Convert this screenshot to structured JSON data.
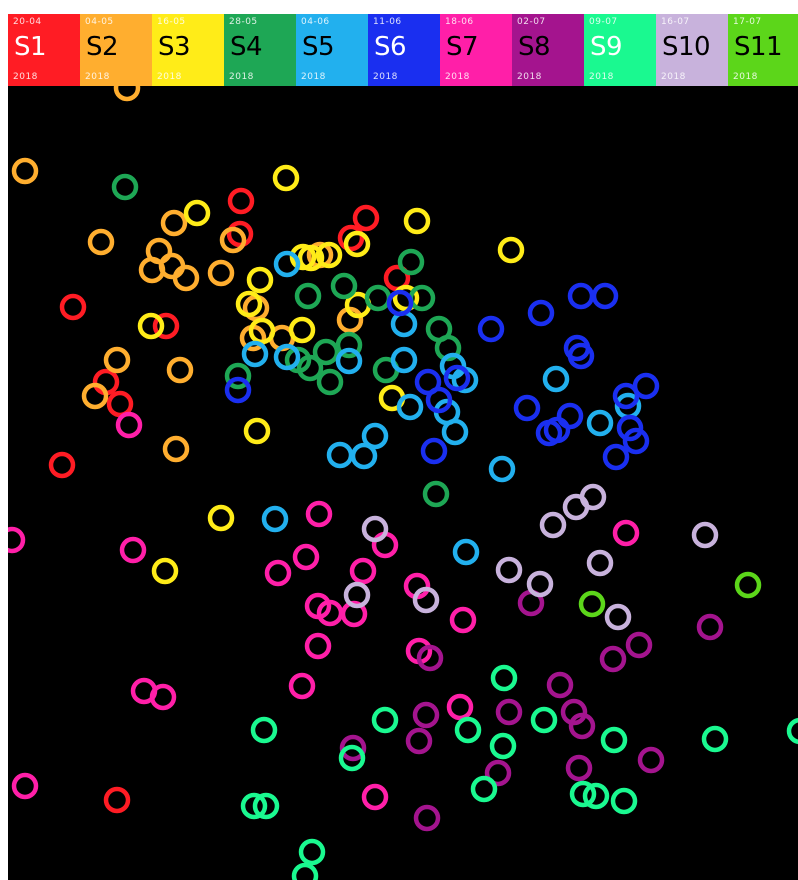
{
  "chart_data": {
    "type": "scatter",
    "marker": "ring",
    "background": "#000000",
    "series": [
      {
        "name": "S1",
        "date": "20-04",
        "year": "2018",
        "color": "#ff1c24",
        "label_color": "#ffffff",
        "points": [
          [
            241,
            201
          ],
          [
            366,
            218
          ],
          [
            240,
            234
          ],
          [
            351,
            238
          ],
          [
            397,
            278
          ],
          [
            73,
            307
          ],
          [
            166,
            326
          ],
          [
            106,
            382
          ],
          [
            120,
            404
          ],
          [
            62,
            465
          ],
          [
            117,
            800
          ]
        ]
      },
      {
        "name": "S2",
        "date": "04-05",
        "year": "2018",
        "color": "#ffae2f",
        "label_color": "#000000",
        "points": [
          [
            127,
            88
          ],
          [
            25,
            171
          ],
          [
            174,
            223
          ],
          [
            233,
            240
          ],
          [
            101,
            242
          ],
          [
            159,
            251
          ],
          [
            152,
            270
          ],
          [
            172,
            266
          ],
          [
            186,
            278
          ],
          [
            221,
            273
          ],
          [
            320,
            255
          ],
          [
            256,
            308
          ],
          [
            350,
            320
          ],
          [
            253,
            338
          ],
          [
            282,
            338
          ],
          [
            117,
            360
          ],
          [
            180,
            370
          ],
          [
            95,
            396
          ],
          [
            176,
            449
          ]
        ]
      },
      {
        "name": "S3",
        "date": "16-05",
        "year": "2018",
        "color": "#ffec18",
        "label_color": "#000000",
        "points": [
          [
            286,
            178
          ],
          [
            197,
            213
          ],
          [
            417,
            221
          ],
          [
            511,
            250
          ],
          [
            357,
            244
          ],
          [
            303,
            257
          ],
          [
            311,
            258
          ],
          [
            329,
            255
          ],
          [
            260,
            280
          ],
          [
            406,
            298
          ],
          [
            249,
            304
          ],
          [
            358,
            305
          ],
          [
            302,
            330
          ],
          [
            151,
            326
          ],
          [
            262,
            331
          ],
          [
            392,
            398
          ],
          [
            257,
            431
          ],
          [
            221,
            518
          ],
          [
            165,
            571
          ]
        ]
      },
      {
        "name": "S4",
        "date": "28-05",
        "year": "2018",
        "color": "#1ea755",
        "label_color": "#000000",
        "points": [
          [
            125,
            187
          ],
          [
            411,
            262
          ],
          [
            344,
            286
          ],
          [
            308,
            296
          ],
          [
            378,
            298
          ],
          [
            422,
            298
          ],
          [
            439,
            329
          ],
          [
            448,
            348
          ],
          [
            349,
            345
          ],
          [
            326,
            352
          ],
          [
            310,
            368
          ],
          [
            298,
            360
          ],
          [
            386,
            370
          ],
          [
            330,
            382
          ],
          [
            238,
            376
          ],
          [
            436,
            494
          ]
        ]
      },
      {
        "name": "S5",
        "date": "04-06",
        "year": "2018",
        "color": "#22b0ee",
        "label_color": "#000000",
        "points": [
          [
            287,
            264
          ],
          [
            404,
            324
          ],
          [
            255,
            354
          ],
          [
            287,
            357
          ],
          [
            349,
            361
          ],
          [
            404,
            360
          ],
          [
            453,
            366
          ],
          [
            465,
            380
          ],
          [
            556,
            379
          ],
          [
            410,
            407
          ],
          [
            447,
            412
          ],
          [
            455,
            432
          ],
          [
            375,
            436
          ],
          [
            340,
            455
          ],
          [
            364,
            456
          ],
          [
            600,
            423
          ],
          [
            628,
            406
          ],
          [
            502,
            469
          ],
          [
            275,
            519
          ],
          [
            466,
            552
          ]
        ]
      },
      {
        "name": "S6",
        "date": "11-06",
        "year": "2018",
        "color": "#1a2ff0",
        "label_color": "#ffffff",
        "points": [
          [
            400,
            303
          ],
          [
            491,
            329
          ],
          [
            541,
            313
          ],
          [
            581,
            296
          ],
          [
            605,
            296
          ],
          [
            577,
            348
          ],
          [
            581,
            356
          ],
          [
            646,
            386
          ],
          [
            626,
            396
          ],
          [
            457,
            378
          ],
          [
            428,
            382
          ],
          [
            439,
            400
          ],
          [
            527,
            408
          ],
          [
            570,
            416
          ],
          [
            549,
            433
          ],
          [
            557,
            430
          ],
          [
            630,
            428
          ],
          [
            636,
            441
          ],
          [
            616,
            457
          ],
          [
            434,
            451
          ],
          [
            238,
            390
          ]
        ]
      },
      {
        "name": "S7",
        "date": "18-06",
        "year": "2018",
        "color": "#ff1fa8",
        "label_color": "#000000",
        "points": [
          [
            129,
            425
          ],
          [
            319,
            514
          ],
          [
            385,
            545
          ],
          [
            626,
            533
          ],
          [
            12,
            540
          ],
          [
            133,
            550
          ],
          [
            306,
            557
          ],
          [
            278,
            573
          ],
          [
            363,
            571
          ],
          [
            417,
            586
          ],
          [
            318,
            606
          ],
          [
            330,
            613
          ],
          [
            354,
            614
          ],
          [
            463,
            620
          ],
          [
            318,
            646
          ],
          [
            419,
            651
          ],
          [
            302,
            686
          ],
          [
            144,
            691
          ],
          [
            163,
            697
          ],
          [
            460,
            707
          ],
          [
            25,
            786
          ],
          [
            375,
            797
          ]
        ]
      },
      {
        "name": "S8",
        "date": "02-07",
        "year": "2018",
        "color": "#a4148e",
        "label_color": "#000000",
        "points": [
          [
            531,
            603
          ],
          [
            710,
            627
          ],
          [
            639,
            645
          ],
          [
            613,
            659
          ],
          [
            430,
            658
          ],
          [
            560,
            685
          ],
          [
            574,
            712
          ],
          [
            509,
            712
          ],
          [
            582,
            726
          ],
          [
            426,
            715
          ],
          [
            419,
            741
          ],
          [
            353,
            748
          ],
          [
            651,
            760
          ],
          [
            579,
            768
          ],
          [
            498,
            773
          ],
          [
            427,
            818
          ]
        ]
      },
      {
        "name": "S9",
        "date": "09-07",
        "year": "2018",
        "color": "#1af990",
        "label_color": "#ffffff",
        "points": [
          [
            504,
            678
          ],
          [
            264,
            730
          ],
          [
            385,
            720
          ],
          [
            468,
            730
          ],
          [
            544,
            720
          ],
          [
            614,
            740
          ],
          [
            503,
            746
          ],
          [
            715,
            739
          ],
          [
            352,
            758
          ],
          [
            484,
            789
          ],
          [
            583,
            794
          ],
          [
            596,
            796
          ],
          [
            624,
            801
          ],
          [
            254,
            806
          ],
          [
            266,
            806
          ],
          [
            312,
            852
          ],
          [
            305,
            876
          ],
          [
            800,
            731
          ]
        ]
      },
      {
        "name": "S10",
        "date": "16-07",
        "year": "2018",
        "color": "#c8b2dc",
        "label_color": "#000000",
        "points": [
          [
            593,
            497
          ],
          [
            576,
            507
          ],
          [
            553,
            525
          ],
          [
            375,
            529
          ],
          [
            705,
            535
          ],
          [
            600,
            563
          ],
          [
            509,
            570
          ],
          [
            540,
            584
          ],
          [
            357,
            595
          ],
          [
            426,
            600
          ],
          [
            618,
            617
          ]
        ]
      },
      {
        "name": "S11",
        "date": "17-07",
        "year": "2018",
        "color": "#5cd61a",
        "label_color": "#000000",
        "points": [
          [
            748,
            585
          ],
          [
            592,
            604
          ]
        ]
      }
    ]
  }
}
